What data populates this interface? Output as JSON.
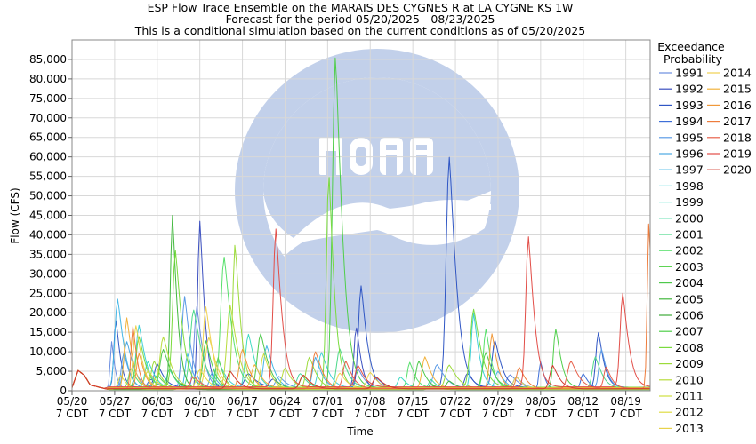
{
  "chart_data": {
    "type": "line",
    "title": "ESP Flow Trace Ensemble on the MARAIS DES CYGNES R at LA CYGNE KS 1W",
    "subtitle": "Forecast for the period 05/20/2025 - 08/23/2025",
    "subtitle2": "This is a conditional simulation based on the current conditions as of 05/20/2025",
    "xlabel": "Time",
    "ylabel": "Flow (CFS)",
    "ylim": [
      0,
      90000
    ],
    "yticks": [
      0,
      5000,
      10000,
      15000,
      20000,
      25000,
      30000,
      35000,
      40000,
      45000,
      50000,
      55000,
      60000,
      65000,
      70000,
      75000,
      80000,
      85000
    ],
    "ytick_labels": [
      "0",
      "5,000",
      "10,000",
      "15,000",
      "20,000",
      "25,000",
      "30,000",
      "35,000",
      "40,000",
      "45,000",
      "50,000",
      "55,000",
      "60,000",
      "65,000",
      "70,000",
      "75,000",
      "80,000",
      "85,000"
    ],
    "x_start": "05/20/2025",
    "x_end": "08/23/2025",
    "xticks": [
      {
        "date": "05/20",
        "l2": "7 CDT"
      },
      {
        "date": "05/27",
        "l2": "7 CDT"
      },
      {
        "date": "06/03",
        "l2": "7 CDT"
      },
      {
        "date": "06/10",
        "l2": "7 CDT"
      },
      {
        "date": "06/17",
        "l2": "7 CDT"
      },
      {
        "date": "06/24",
        "l2": "7 CDT"
      },
      {
        "date": "07/01",
        "l2": "7 CDT"
      },
      {
        "date": "07/08",
        "l2": "7 CDT"
      },
      {
        "date": "07/15",
        "l2": "7 CDT"
      },
      {
        "date": "07/22",
        "l2": "7 CDT"
      },
      {
        "date": "07/29",
        "l2": "7 CDT"
      },
      {
        "date": "08/05",
        "l2": "7 CDT"
      },
      {
        "date": "08/12",
        "l2": "7 CDT"
      },
      {
        "date": "08/19",
        "l2": "7 CDT"
      }
    ],
    "grid": true,
    "legend_title": "Exceedance\nProbability",
    "legend_placement": "right",
    "base_profile": [
      [
        0,
        800
      ],
      [
        1,
        5200
      ],
      [
        2,
        4000
      ],
      [
        3,
        1500
      ],
      [
        5,
        700
      ],
      [
        6,
        300
      ]
    ],
    "series": [
      {
        "name": "1991",
        "color": "#6A8DE0",
        "base": 600,
        "peaks": [
          [
            6.5,
            12000,
            0.6
          ],
          [
            20.5,
            21000,
            1.1
          ],
          [
            47,
            5000,
            1.2
          ],
          [
            72,
            3500,
            1.5
          ]
        ]
      },
      {
        "name": "1992",
        "color": "#3B4FC0",
        "base": 500,
        "peaks": [
          [
            21,
            43000,
            0.9
          ],
          [
            33,
            2500,
            1.5
          ],
          [
            46.7,
            16000,
            0.9
          ],
          [
            65,
            4000,
            1.2
          ]
        ]
      },
      {
        "name": "1993",
        "color": "#2F56C4",
        "base": 900,
        "peaks": [
          [
            7.2,
            17500,
            0.8
          ],
          [
            14,
            6000,
            1.2
          ],
          [
            29,
            3500,
            1.5
          ],
          [
            47.5,
            26000,
            1.1
          ],
          [
            62,
            59000,
            1.3
          ],
          [
            69.5,
            12000,
            1.2
          ],
          [
            86.5,
            14000,
            1.0
          ]
        ]
      },
      {
        "name": "1994",
        "color": "#3E6FD8",
        "base": 400,
        "peaks": [
          [
            13,
            2500,
            1.5
          ],
          [
            50,
            3000,
            1.3
          ],
          [
            77,
            7000,
            0.7
          ],
          [
            84,
            4000,
            1.0
          ]
        ]
      },
      {
        "name": "1995",
        "color": "#5B9BE6",
        "base": 700,
        "peaks": [
          [
            8.5,
            9000,
            1.0
          ],
          [
            18.5,
            23500,
            1.1
          ],
          [
            34,
            3000,
            1.3
          ],
          [
            60,
            6000,
            1.5
          ],
          [
            87,
            10000,
            1.0
          ]
        ]
      },
      {
        "name": "1996",
        "color": "#4BA8E3",
        "base": 600,
        "peaks": [
          [
            9,
            12000,
            1.3
          ],
          [
            23,
            4000,
            1.0
          ],
          [
            40,
            8000,
            1.2
          ],
          [
            73,
            3000,
            1.2
          ]
        ]
      },
      {
        "name": "1997",
        "color": "#43B6E6",
        "base": 500,
        "peaks": [
          [
            7.5,
            23000,
            1.2
          ],
          [
            19,
            9000,
            1.0
          ],
          [
            32,
            11000,
            1.3
          ],
          [
            70,
            4500,
            1.2
          ]
        ]
      },
      {
        "name": "1998",
        "color": "#3FCFD8",
        "base": 800,
        "peaks": [
          [
            11,
            16000,
            1.2
          ],
          [
            24,
            7000,
            1.3
          ],
          [
            41,
            9000,
            1.3
          ],
          [
            66,
            19000,
            1.0
          ]
        ]
      },
      {
        "name": "1999",
        "color": "#3EDBC2",
        "base": 500,
        "peaks": [
          [
            12.5,
            7000,
            1.3
          ],
          [
            29,
            14000,
            1.3
          ],
          [
            54,
            3000,
            1.2
          ]
        ]
      },
      {
        "name": "2000",
        "color": "#44D9A0",
        "base": 400,
        "peaks": [
          [
            16,
            5000,
            1.2
          ],
          [
            37.5,
            4000,
            1.4
          ],
          [
            59,
            2500,
            1.0
          ]
        ]
      },
      {
        "name": "2001",
        "color": "#4CD98A",
        "base": 700,
        "peaks": [
          [
            20,
            20000,
            1.5
          ],
          [
            44,
            10000,
            1.3
          ],
          [
            86,
            8000,
            1.2
          ]
        ]
      },
      {
        "name": "2002",
        "color": "#58E06C",
        "base": 800,
        "peaks": [
          [
            9.7,
            5000,
            1.0
          ],
          [
            25,
            33500,
            1.4
          ],
          [
            55.5,
            6500,
            1.0
          ],
          [
            68,
            15000,
            1.0
          ]
        ]
      },
      {
        "name": "2003",
        "color": "#5FD455",
        "base": 500,
        "peaks": [
          [
            14,
            3500,
            1.3
          ],
          [
            24,
            8000,
            1.0
          ],
          [
            38,
            3500,
            1.3
          ]
        ]
      },
      {
        "name": "2004",
        "color": "#4EC94C",
        "base": 600,
        "peaks": [
          [
            15,
            10000,
            1.4
          ],
          [
            31,
            14000,
            1.4
          ],
          [
            57,
            7000,
            1.2
          ]
        ]
      },
      {
        "name": "2005",
        "color": "#42B83E",
        "base": 500,
        "peaks": [
          [
            16.5,
            44500,
            0.9
          ],
          [
            62,
            2000,
            1.2
          ]
        ]
      },
      {
        "name": "2006",
        "color": "#3EAA3A",
        "base": 300,
        "peaks": [
          [
            18,
            1500,
            1.0
          ],
          [
            59,
            1200,
            1.0
          ]
        ]
      },
      {
        "name": "2007",
        "color": "#4FCE4A",
        "base": 800,
        "peaks": [
          [
            22,
            12000,
            1.2
          ],
          [
            43.3,
            85000,
            1.3
          ],
          [
            68,
            9000,
            1.3
          ],
          [
            79.5,
            15000,
            1.0
          ]
        ]
      },
      {
        "name": "2008",
        "color": "#7ADB3E",
        "base": 900,
        "peaks": [
          [
            11,
            13000,
            1.2
          ],
          [
            17,
            35000,
            1.2
          ],
          [
            42.2,
            55000,
            1.0
          ],
          [
            66,
            20000,
            1.4
          ]
        ]
      },
      {
        "name": "2009",
        "color": "#9CDB3A",
        "base": 600,
        "peaks": [
          [
            13.5,
            7000,
            1.2
          ],
          [
            26.8,
            37000,
            1.0
          ],
          [
            39,
            8000,
            1.3
          ],
          [
            62,
            6000,
            1.5
          ]
        ]
      },
      {
        "name": "2010",
        "color": "#B8DC3C",
        "base": 800,
        "peaks": [
          [
            15,
            13000,
            1.4
          ],
          [
            26,
            21000,
            1.4
          ],
          [
            35,
            5000,
            1.2
          ]
        ]
      },
      {
        "name": "2011",
        "color": "#CFDE40",
        "base": 500,
        "peaks": [
          [
            12.5,
            4500,
            1.5
          ],
          [
            31.5,
            9000,
            1.2
          ]
        ]
      },
      {
        "name": "2012",
        "color": "#E0DC44",
        "base": 400,
        "peaks": [
          [
            8,
            3500,
            1.0
          ],
          [
            21,
            5000,
            1.4
          ]
        ]
      },
      {
        "name": "2013",
        "color": "#E8D24A",
        "base": 700,
        "peaks": [
          [
            10.5,
            16000,
            1.1
          ],
          [
            22.5,
            13000,
            1.4
          ],
          [
            49,
            4000,
            1.3
          ]
        ]
      },
      {
        "name": "2014",
        "color": "#F0D050",
        "base": 500,
        "peaks": [
          [
            22,
            21000,
            1.2
          ],
          [
            44,
            4000,
            1.3
          ],
          [
            73,
            3000,
            1.2
          ]
        ]
      },
      {
        "name": "2015",
        "color": "#F2B23C",
        "base": 700,
        "peaks": [
          [
            9,
            18000,
            1.0
          ],
          [
            30,
            6000,
            1.3
          ],
          [
            58,
            8000,
            1.2
          ]
        ]
      },
      {
        "name": "2016",
        "color": "#F0993A",
        "base": 600,
        "peaks": [
          [
            11,
            9000,
            1.0
          ],
          [
            28,
            10000,
            1.3
          ],
          [
            69,
            14000,
            1.0
          ]
        ]
      },
      {
        "name": "2017",
        "color": "#EE7C3C",
        "base": 500,
        "peaks": [
          [
            10,
            16000,
            0.8
          ],
          [
            40,
            9500,
            1.3
          ],
          [
            73.5,
            5500,
            1.2
          ],
          [
            94.8,
            43000,
            0.7
          ]
        ]
      },
      {
        "name": "2018",
        "color": "#E8604A",
        "base": 600,
        "peaks": [
          [
            20,
            3000,
            1.3
          ],
          [
            45,
            7000,
            1.2
          ],
          [
            82,
            7000,
            1.4
          ],
          [
            87.8,
            5500,
            1.0
          ]
        ]
      },
      {
        "name": "2019",
        "color": "#E24E48",
        "base": 1000,
        "peaks": [
          [
            33.5,
            40500,
            1.1
          ],
          [
            47,
            5500,
            1.2
          ],
          [
            75,
            38500,
            1.1
          ],
          [
            90.5,
            24000,
            1.1
          ]
        ]
      },
      {
        "name": "2020",
        "color": "#D23A2E",
        "base": 500,
        "peaks": [
          [
            26,
            4500,
            1.3
          ],
          [
            38,
            3500,
            1.4
          ],
          [
            50,
            3000,
            1.4
          ],
          [
            79,
            6000,
            1.2
          ]
        ]
      }
    ]
  }
}
